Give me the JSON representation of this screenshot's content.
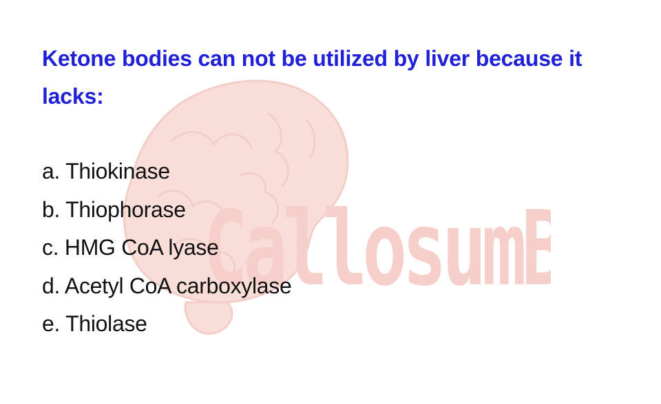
{
  "question": {
    "text": "Ketone bodies can not be utilized by liver because it lacks:"
  },
  "options": [
    {
      "label": "a. Thiokinase"
    },
    {
      "label": "b. Thiophorase"
    },
    {
      "label": "c. HMG CoA lyase"
    },
    {
      "label": "d. Acetyl CoA carboxylase"
    },
    {
      "label": "e. Thiolase"
    }
  ],
  "watermark": {
    "text": "CallosumBD",
    "color": "#f2b4ac",
    "icon": "brain-icon"
  },
  "colors": {
    "question": "#2020d8",
    "option": "#111111"
  }
}
